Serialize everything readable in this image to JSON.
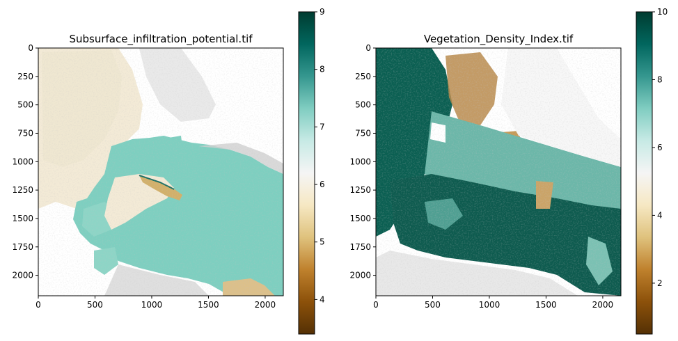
{
  "chart_data": [
    {
      "type": "heatmap",
      "title": "Subsurface_infiltration_potential.tif",
      "colormap": "BrBG",
      "xlim": [
        0,
        2160
      ],
      "ylim": [
        2180,
        0
      ],
      "xticks": [
        0,
        500,
        1000,
        1500,
        2000
      ],
      "yticks": [
        0,
        250,
        500,
        750,
        1000,
        1250,
        1500,
        1750,
        2000
      ],
      "colorbar": {
        "range": [
          3.4,
          9
        ],
        "ticks": [
          4,
          5,
          6,
          7,
          8,
          9
        ]
      },
      "regions": [
        {
          "name": "northwest upland",
          "value": 5.8
        },
        {
          "name": "central-east lowland",
          "value": 7.4
        },
        {
          "name": "river channel",
          "value": 5.2
        },
        {
          "name": "southeast corner",
          "value": 5.0
        }
      ]
    },
    {
      "type": "heatmap",
      "title": "Vegetation_Density_Index.tif",
      "colormap": "BrBG",
      "xlim": [
        0,
        2160
      ],
      "ylim": [
        2180,
        0
      ],
      "xticks": [
        0,
        500,
        1000,
        1500,
        2000
      ],
      "yticks": [
        0,
        250,
        500,
        750,
        1000,
        1250,
        1500,
        1750,
        2000
      ],
      "colorbar": {
        "range": [
          0.5,
          10
        ],
        "ticks": [
          2,
          4,
          6,
          8,
          10
        ]
      },
      "regions": [
        {
          "name": "western forest",
          "value": 9.0
        },
        {
          "name": "northern patches",
          "value": 3.0
        },
        {
          "name": "central mix",
          "value": 6.5
        },
        {
          "name": "southern forest",
          "value": 9.0
        }
      ]
    }
  ],
  "colors": {
    "low": "#543005",
    "mid": "#f5f5f5",
    "high": "#003c30"
  }
}
